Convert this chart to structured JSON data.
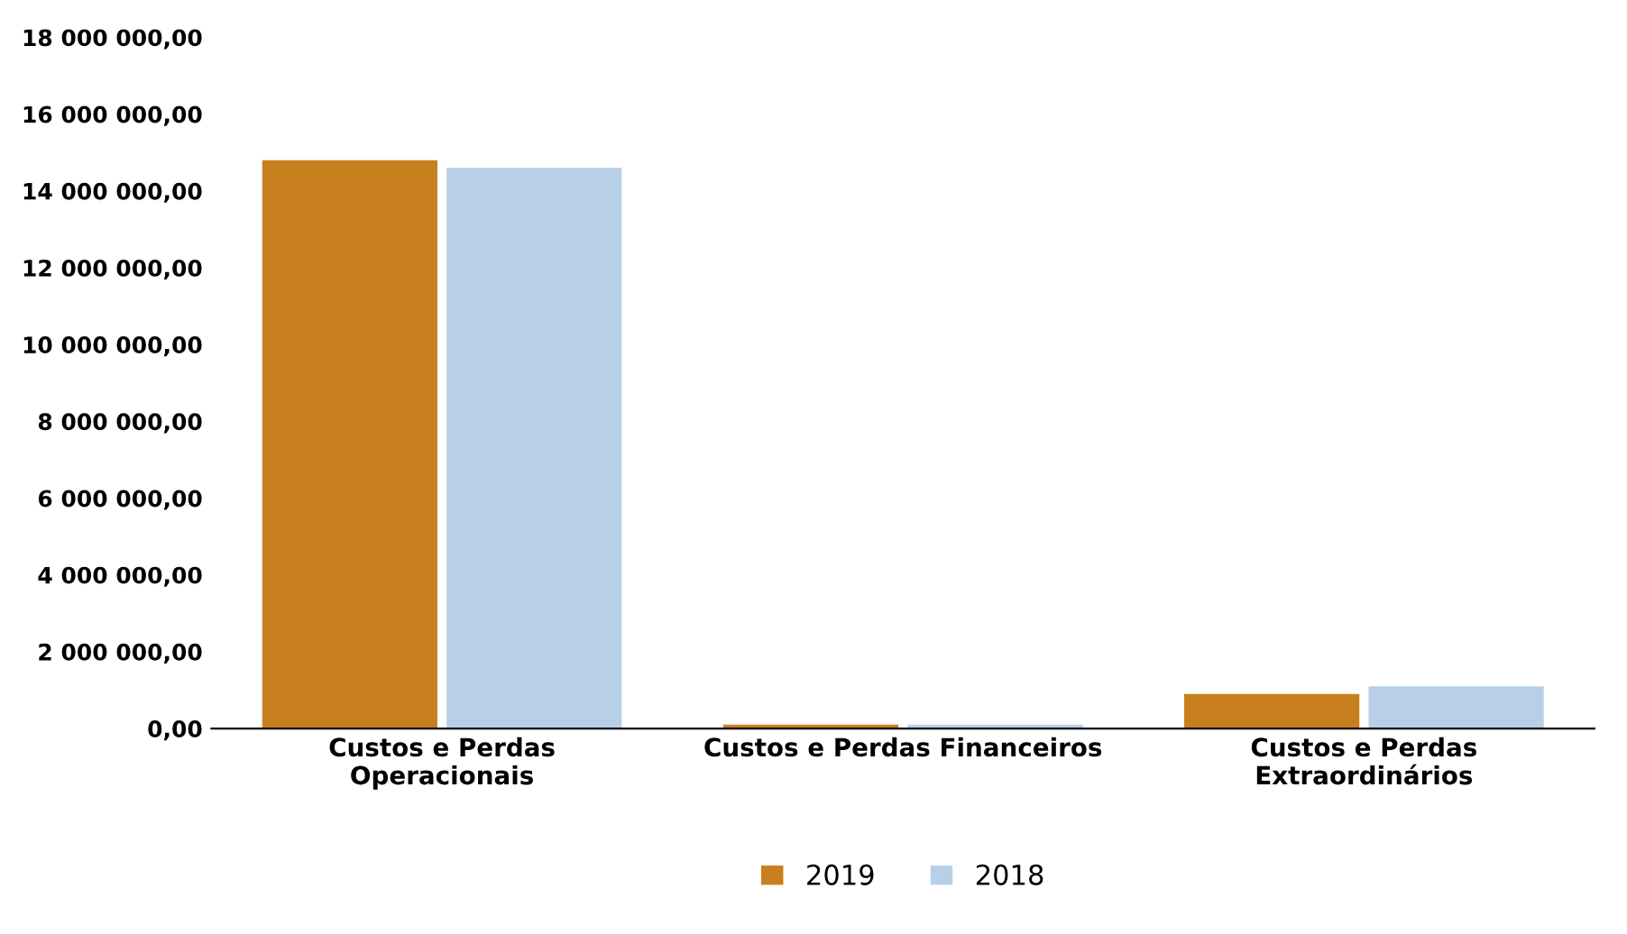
{
  "chart_data": {
    "type": "bar",
    "categories": [
      "Custos e Perdas\nOperacionais",
      "Custos e Perdas Financeiros",
      "Custos e Perdas\nExtraordinários"
    ],
    "series": [
      {
        "name": "2019",
        "color": "#c8801e",
        "values": [
          14800000,
          100000,
          900000
        ]
      },
      {
        "name": "2018",
        "color": "#b8cfe8",
        "values": [
          14600000,
          100000,
          1100000
        ]
      }
    ],
    "ylim": [
      0,
      18000000
    ],
    "yticks": [
      {
        "value": 0,
        "label": "0,00"
      },
      {
        "value": 2000000,
        "label": "2 000 000,00"
      },
      {
        "value": 4000000,
        "label": "4 000 000,00"
      },
      {
        "value": 6000000,
        "label": "6 000 000,00"
      },
      {
        "value": 8000000,
        "label": "8 000 000,00"
      },
      {
        "value": 10000000,
        "label": "10 000 000,00"
      },
      {
        "value": 12000000,
        "label": "12 000 000,00"
      },
      {
        "value": 14000000,
        "label": "14 000 000,00"
      },
      {
        "value": 16000000,
        "label": "16 000 000,00"
      },
      {
        "value": 18000000,
        "label": "18 000 000,00"
      }
    ],
    "grid": false,
    "legend": "bottom"
  }
}
